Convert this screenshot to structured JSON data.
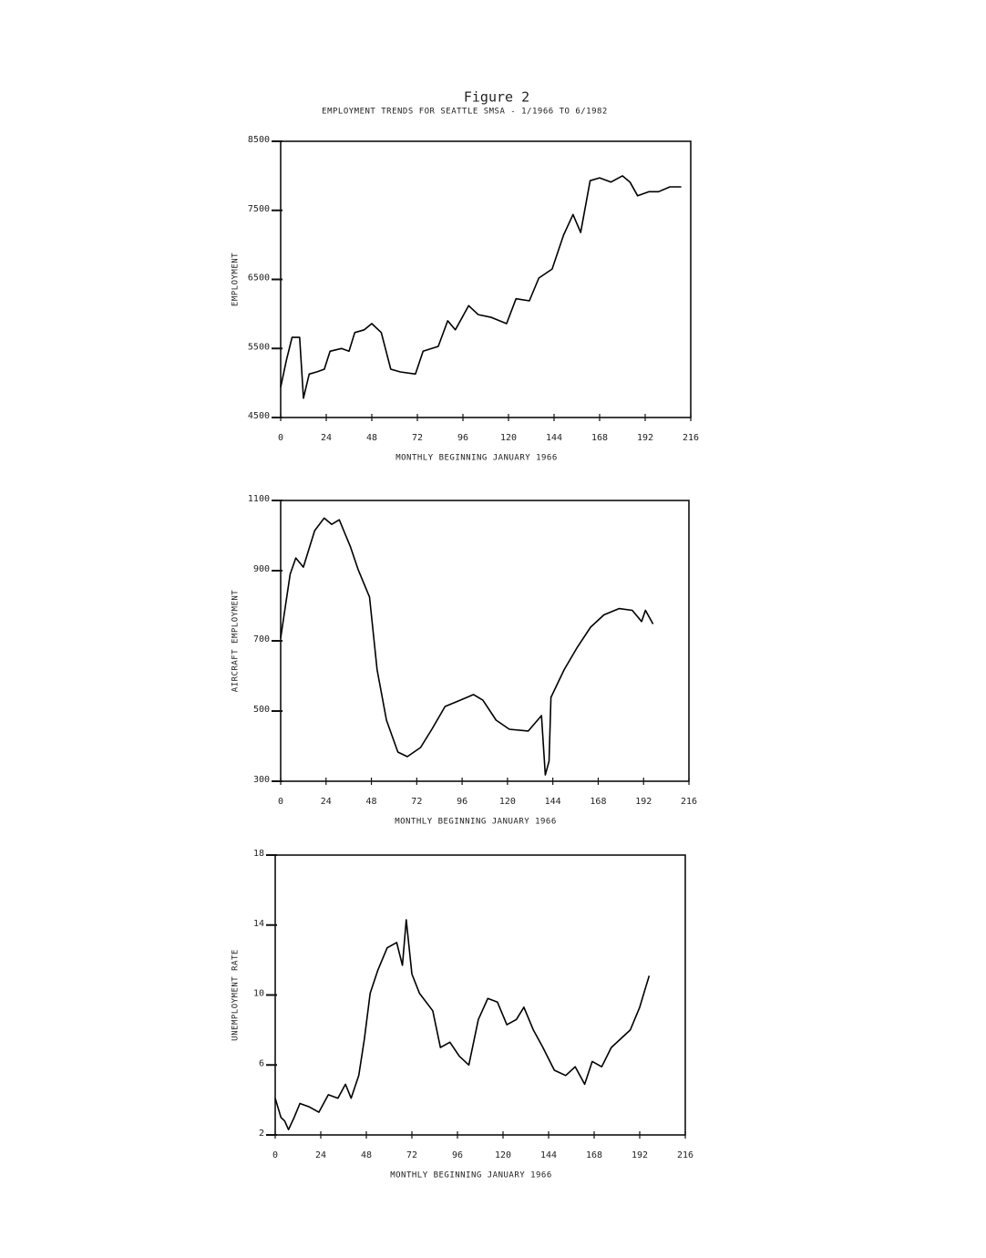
{
  "header": {
    "title": "Figure 2",
    "subtitle": "EMPLOYMENT TRENDS FOR SEATTLE SMSA - 1/1966 TO 6/1982"
  },
  "chart_data": [
    {
      "type": "line",
      "ylabel": "EMPLOYMENT",
      "xlabel": "MONTHLY BEGINNING JANUARY 1966",
      "color": "#000000",
      "xlim": [
        0,
        216
      ],
      "xticks": [
        0,
        24,
        48,
        72,
        96,
        120,
        144,
        168,
        192,
        216
      ],
      "ylim": [
        4500,
        8500
      ],
      "yticks": [
        4500,
        5500,
        6500,
        7500,
        8500
      ],
      "x": [
        0,
        3,
        6,
        10,
        12,
        15,
        19,
        23,
        26,
        32,
        36,
        39,
        44,
        48,
        53,
        58,
        63,
        71,
        75,
        83,
        88,
        92,
        99,
        104,
        111,
        119,
        124,
        131,
        136,
        143,
        149,
        154,
        158,
        163,
        168,
        174,
        180,
        184,
        188,
        194,
        199,
        205,
        211
      ],
      "values": [
        4940,
        5330,
        5660,
        5660,
        4780,
        5130,
        5160,
        5200,
        5460,
        5500,
        5460,
        5730,
        5770,
        5860,
        5730,
        5200,
        5160,
        5130,
        5460,
        5530,
        5900,
        5770,
        6120,
        5990,
        5950,
        5860,
        6220,
        6190,
        6520,
        6650,
        7140,
        7440,
        7180,
        7930,
        7970,
        7910,
        8000,
        7910,
        7710,
        7770,
        7770,
        7840,
        7840
      ]
    },
    {
      "type": "line",
      "ylabel": "AIRCRAFT EMPLOYMENT",
      "xlabel": "MONTHLY BEGINNING JANUARY 1966",
      "color": "#000000",
      "xlim": [
        0,
        216
      ],
      "xticks": [
        0,
        24,
        48,
        72,
        96,
        120,
        144,
        168,
        192,
        216
      ],
      "ylim": [
        300,
        1100
      ],
      "yticks": [
        300,
        500,
        700,
        900,
        1100
      ],
      "x": [
        0,
        5,
        8,
        12,
        18,
        23,
        27,
        31,
        37,
        41,
        47,
        51,
        56,
        62,
        67,
        74,
        80,
        87,
        95,
        102,
        107,
        114,
        121,
        131,
        138,
        140,
        142,
        143,
        150,
        157,
        164,
        171,
        179,
        186,
        191,
        193,
        197
      ],
      "values": [
        708,
        890,
        936,
        910,
        1014,
        1050,
        1032,
        1045,
        967,
        903,
        825,
        618,
        474,
        383,
        370,
        396,
        448,
        513,
        531,
        547,
        531,
        474,
        448,
        443,
        487,
        318,
        357,
        539,
        618,
        682,
        739,
        774,
        792,
        787,
        755,
        787,
        748
      ]
    },
    {
      "type": "line",
      "ylabel": "UNEMPLOYMENT RATE",
      "xlabel": "MONTHLY BEGINNING JANUARY 1966",
      "color": "#000000",
      "xlim": [
        0,
        216
      ],
      "xticks": [
        0,
        24,
        48,
        72,
        96,
        120,
        144,
        168,
        192,
        216
      ],
      "ylim": [
        2,
        18
      ],
      "yticks": [
        2,
        6,
        10,
        14,
        18
      ],
      "x": [
        0,
        3,
        5,
        7,
        10,
        13,
        18,
        23,
        28,
        33,
        37,
        40,
        44,
        47,
        50,
        54,
        59,
        64,
        67,
        69,
        72,
        76,
        83,
        87,
        92,
        97,
        102,
        107,
        112,
        117,
        122,
        127,
        131,
        136,
        141,
        147,
        153,
        158,
        163,
        167,
        172,
        177,
        182,
        187,
        192,
        195,
        197
      ],
      "values": [
        4.1,
        3.0,
        2.8,
        2.3,
        3.0,
        3.8,
        3.6,
        3.3,
        4.3,
        4.1,
        4.9,
        4.1,
        5.4,
        7.5,
        10.1,
        11.4,
        12.7,
        13.0,
        11.7,
        14.3,
        11.2,
        10.1,
        9.1,
        7.0,
        7.3,
        6.5,
        6.0,
        8.6,
        9.8,
        9.6,
        8.3,
        8.6,
        9.3,
        8.0,
        7.0,
        5.7,
        5.4,
        5.9,
        4.9,
        6.2,
        5.9,
        7.0,
        7.5,
        8.0,
        9.3,
        10.4,
        11.1
      ]
    }
  ]
}
